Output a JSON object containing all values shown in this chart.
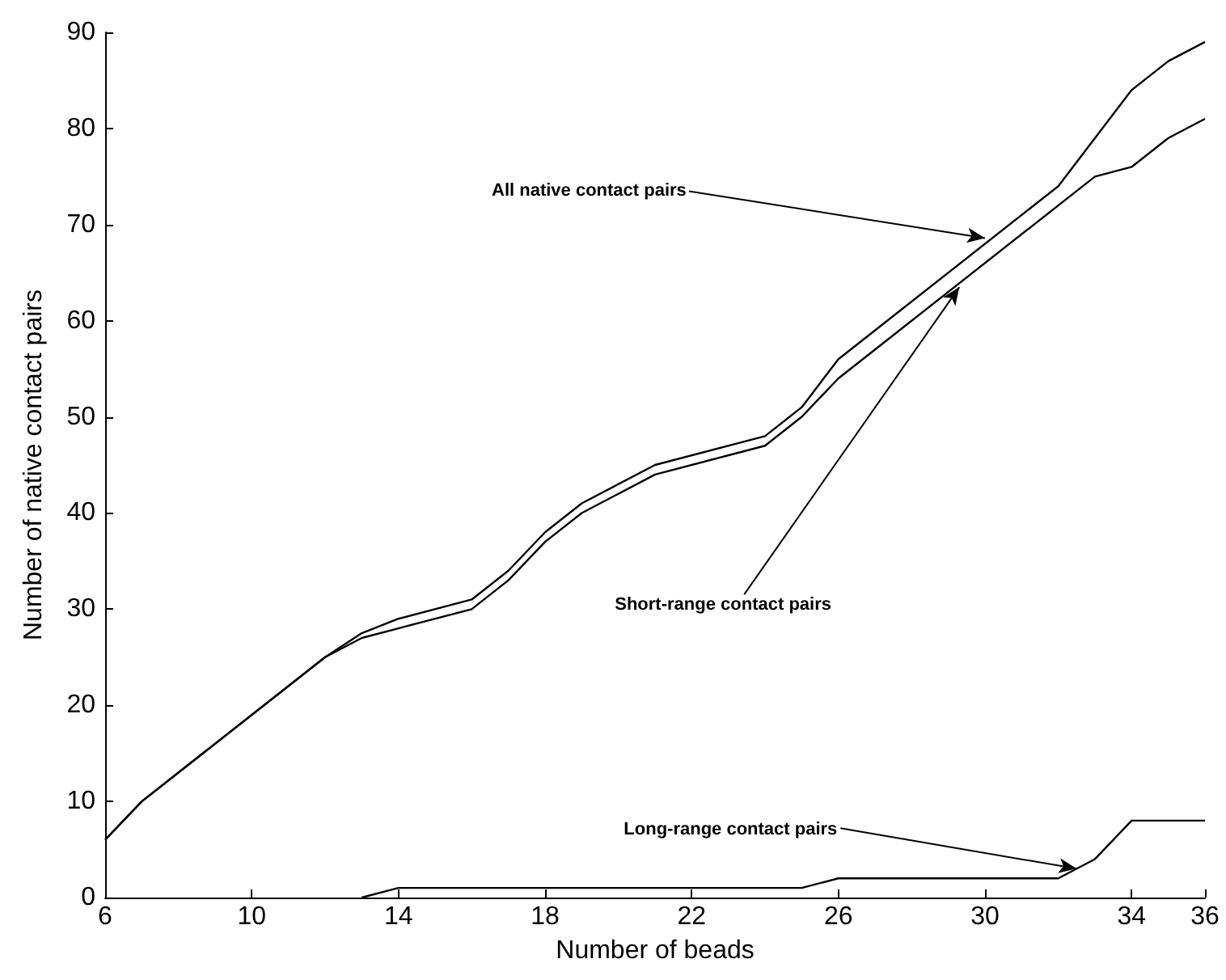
{
  "chart_data": {
    "type": "line",
    "xlabel": "Number of beads",
    "ylabel": "Number of native contact pairs",
    "xlim": [
      6,
      36
    ],
    "xticks": [
      6,
      10,
      14,
      18,
      22,
      26,
      30,
      34,
      36
    ],
    "ylim": [
      0,
      90
    ],
    "yticks": [
      0,
      10,
      20,
      30,
      40,
      50,
      60,
      70,
      80,
      90
    ],
    "grid": false,
    "marker": "none",
    "line_style": "solid",
    "series": [
      {
        "color": "#000000",
        "x": [
          6,
          7,
          12,
          13,
          14,
          16,
          17,
          18,
          19,
          21,
          24,
          25,
          26,
          32,
          33,
          34,
          35,
          36
        ],
        "values": [
          6,
          10,
          25,
          27.5,
          29,
          31,
          34,
          38,
          41,
          45,
          48,
          51,
          56,
          74,
          79,
          84,
          87,
          89
        ]
      },
      {
        "color": "#000000",
        "x": [
          6,
          7,
          12,
          13,
          14,
          16,
          17,
          18,
          19,
          21,
          24,
          25,
          26,
          33,
          34,
          35,
          36
        ],
        "values": [
          6,
          10,
          25,
          27,
          28,
          30,
          33,
          37,
          40,
          44,
          47,
          50,
          54,
          75,
          76,
          79,
          81
        ]
      },
      {
        "color": "#000000",
        "x": [
          13,
          14,
          25,
          26,
          32,
          33,
          34,
          36
        ],
        "values": [
          0,
          1,
          1,
          2,
          2,
          4,
          8,
          8
        ]
      }
    ],
    "annotations": [
      {
        "text": "All native contact pairs",
        "x": 30,
        "y": 68.6
      },
      {
        "text": "Short-range contact pairs",
        "x": 29.3,
        "y": 63.5
      },
      {
        "text": "Long-range contact pairs",
        "x": 32.5,
        "y": 3
      }
    ]
  }
}
